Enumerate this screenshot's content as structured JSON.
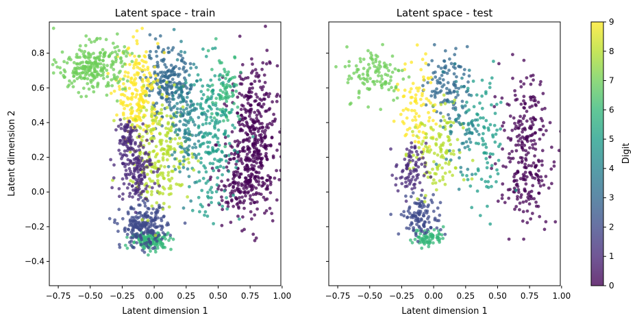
{
  "chart_data": [
    {
      "type": "scatter",
      "title": "Latent space - train",
      "xlabel": "Latent dimension 1",
      "ylabel": "Latent dimension 2",
      "xlim": [
        -0.82,
        0.99
      ],
      "ylim": [
        -0.54,
        0.98
      ],
      "xticks": [
        -0.75,
        -0.5,
        -0.25,
        0.0,
        0.25,
        0.5,
        0.75,
        1.0
      ],
      "xtick_labels": [
        "−0.75",
        "−0.50",
        "−0.25",
        "0.00",
        "0.25",
        "0.50",
        "0.75",
        "1.00"
      ],
      "yticks": [
        -0.4,
        -0.2,
        0.0,
        0.2,
        0.4,
        0.6,
        0.8
      ],
      "ytick_labels": [
        "−0.4",
        "−0.2",
        "0.0",
        "0.2",
        "0.4",
        "0.6",
        "0.8"
      ],
      "grid": false,
      "clusters": [
        {
          "digit": 0,
          "cx": 0.78,
          "cy": 0.3,
          "sx": 0.09,
          "sy": 0.22,
          "n": 420
        },
        {
          "digit": 0,
          "cx": 0.65,
          "cy": 0.05,
          "sx": 0.1,
          "sy": 0.1,
          "n": 120
        },
        {
          "digit": 1,
          "cx": -0.15,
          "cy": 0.14,
          "sx": 0.07,
          "sy": 0.09,
          "n": 160
        },
        {
          "digit": 1,
          "cx": -0.22,
          "cy": 0.32,
          "sx": 0.04,
          "sy": 0.06,
          "n": 60
        },
        {
          "digit": 2,
          "cx": -0.08,
          "cy": -0.2,
          "sx": 0.09,
          "sy": 0.06,
          "n": 220
        },
        {
          "digit": 3,
          "cx": 0.1,
          "cy": 0.62,
          "sx": 0.09,
          "sy": 0.1,
          "n": 200
        },
        {
          "digit": 4,
          "cx": 0.25,
          "cy": 0.4,
          "sx": 0.06,
          "sy": 0.18,
          "n": 130
        },
        {
          "digit": 5,
          "cx": 0.45,
          "cy": 0.3,
          "sx": 0.09,
          "sy": 0.22,
          "n": 190
        },
        {
          "digit": 6,
          "cx": -0.02,
          "cy": -0.28,
          "sx": 0.08,
          "sy": 0.025,
          "n": 140
        },
        {
          "digit": 6,
          "cx": 0.55,
          "cy": 0.6,
          "sx": 0.06,
          "sy": 0.1,
          "n": 80
        },
        {
          "digit": 7,
          "cx": -0.48,
          "cy": 0.72,
          "sx": 0.13,
          "sy": 0.07,
          "n": 260
        },
        {
          "digit": 8,
          "cx": 0.05,
          "cy": 0.22,
          "sx": 0.12,
          "sy": 0.16,
          "n": 240
        },
        {
          "digit": 9,
          "cx": -0.12,
          "cy": 0.56,
          "sx": 0.08,
          "sy": 0.14,
          "n": 200
        }
      ]
    },
    {
      "type": "scatter",
      "title": "Latent space - test",
      "xlabel": "Latent dimension 1",
      "ylabel": "",
      "xlim": [
        -0.82,
        0.99
      ],
      "ylim": [
        -0.54,
        0.98
      ],
      "xticks": [
        -0.75,
        -0.5,
        -0.25,
        0.0,
        0.25,
        0.5,
        0.75,
        1.0
      ],
      "xtick_labels": [
        "−0.75",
        "−0.50",
        "−0.25",
        "0.00",
        "0.25",
        "0.50",
        "0.75",
        "1.00"
      ],
      "yticks": [
        -0.4,
        -0.2,
        0.0,
        0.2,
        0.4,
        0.6,
        0.8
      ],
      "ytick_labels": [],
      "grid": false,
      "clusters": [
        {
          "digit": 0,
          "cx": 0.72,
          "cy": 0.28,
          "sx": 0.1,
          "sy": 0.2,
          "n": 210
        },
        {
          "digit": 0,
          "cx": 0.7,
          "cy": 0.05,
          "sx": 0.09,
          "sy": 0.1,
          "n": 60
        },
        {
          "digit": 1,
          "cx": -0.18,
          "cy": 0.12,
          "sx": 0.06,
          "sy": 0.08,
          "n": 80
        },
        {
          "digit": 2,
          "cx": -0.1,
          "cy": -0.14,
          "sx": 0.08,
          "sy": 0.06,
          "n": 110
        },
        {
          "digit": 3,
          "cx": 0.1,
          "cy": 0.62,
          "sx": 0.08,
          "sy": 0.1,
          "n": 100
        },
        {
          "digit": 4,
          "cx": 0.22,
          "cy": 0.4,
          "sx": 0.06,
          "sy": 0.16,
          "n": 60
        },
        {
          "digit": 5,
          "cx": 0.4,
          "cy": 0.28,
          "sx": 0.08,
          "sy": 0.2,
          "n": 90
        },
        {
          "digit": 6,
          "cx": -0.04,
          "cy": -0.26,
          "sx": 0.06,
          "sy": 0.025,
          "n": 70
        },
        {
          "digit": 7,
          "cx": -0.45,
          "cy": 0.68,
          "sx": 0.12,
          "sy": 0.08,
          "n": 110
        },
        {
          "digit": 8,
          "cx": 0.02,
          "cy": 0.22,
          "sx": 0.1,
          "sy": 0.14,
          "n": 120
        },
        {
          "digit": 9,
          "cx": -0.12,
          "cy": 0.5,
          "sx": 0.07,
          "sy": 0.14,
          "n": 90
        }
      ]
    }
  ],
  "colorbar": {
    "label": "Digit",
    "min": 0,
    "max": 9,
    "ticks": [
      "0",
      "1",
      "2",
      "3",
      "4",
      "5",
      "6",
      "7",
      "8",
      "9"
    ],
    "colormap": "viridis",
    "alpha": 0.75
  },
  "viridis_stops": [
    "#440154",
    "#482878",
    "#3e4989",
    "#31688e",
    "#26828e",
    "#1f9e89",
    "#35b779",
    "#6ece58",
    "#b5de2b",
    "#fde725"
  ]
}
